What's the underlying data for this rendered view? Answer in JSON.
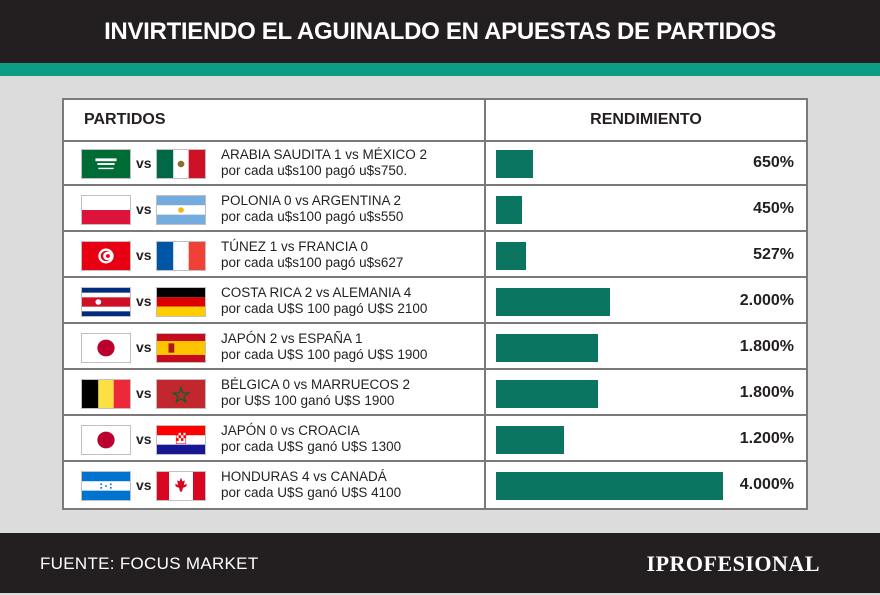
{
  "title": "INVIRTIENDO EL AGUINALDO EN APUESTAS DE PARTIDOS",
  "colors": {
    "bar": "#0a7560",
    "accent": "#0e9c82",
    "dark": "#231f20"
  },
  "table": {
    "col_left": "PARTIDOS",
    "col_right": "RENDIMIENTO",
    "vs_label": "vs"
  },
  "chart_data": {
    "type": "bar",
    "title": "INVIRTIENDO EL AGUINALDO EN APUESTAS DE PARTIDOS",
    "xlabel": "PARTIDOS",
    "ylabel": "RENDIMIENTO",
    "unit": "%",
    "ylim": [
      0,
      4000
    ],
    "rows": [
      {
        "flag1": "flag-saudi-arabia",
        "flag2": "flag-mexico",
        "line1": "ARABIA SAUDITA 1 vs MÉXICO 2",
        "line2": "por cada u$s100 pagó u$s750.",
        "value": 650,
        "label": "650%"
      },
      {
        "flag1": "flag-poland",
        "flag2": "flag-argentina",
        "line1": "POLONIA 0 vs ARGENTINA 2",
        "line2": "por cada u$s100 pagó u$s550",
        "value": 450,
        "label": "450%"
      },
      {
        "flag1": "flag-tunisia",
        "flag2": "flag-france",
        "line1": "TÚNEZ 1 vs FRANCIA 0",
        "line2": "por cada u$s100 pagó u$s627",
        "value": 527,
        "label": "527%"
      },
      {
        "flag1": "flag-costa-rica",
        "flag2": "flag-germany",
        "line1": "COSTA RICA 2 vs ALEMANIA 4",
        "line2": "por cada U$S 100 pagó U$S 2100",
        "value": 2000,
        "label": "2.000%"
      },
      {
        "flag1": "flag-japan",
        "flag2": "flag-spain",
        "line1": "JAPÓN 2 vs ESPAÑA 1",
        "line2": "por cada U$S 100 pagó U$S 1900",
        "value": 1800,
        "label": "1.800%"
      },
      {
        "flag1": "flag-belgium",
        "flag2": "flag-morocco",
        "line1": "BÉLGICA 0 vs MARRUECOS 2",
        "line2": "por U$S 100 ganó U$S 1900",
        "value": 1800,
        "label": "1.800%"
      },
      {
        "flag1": "flag-japan",
        "flag2": "flag-croatia",
        "line1": "JAPÓN 0 vs CROACIA",
        "line2": "por cada U$S ganó U$S 1300",
        "value": 1200,
        "label": "1.200%"
      },
      {
        "flag1": "flag-honduras",
        "flag2": "flag-canada",
        "line1": "HONDURAS 4 vs CANADÁ",
        "line2": "por cada U$S ganó U$S 4100",
        "value": 4000,
        "label": "4.000%"
      }
    ]
  },
  "footer": {
    "source": "FUENTE: FOCUS MARKET",
    "brand": "IPROFESIONAL"
  }
}
